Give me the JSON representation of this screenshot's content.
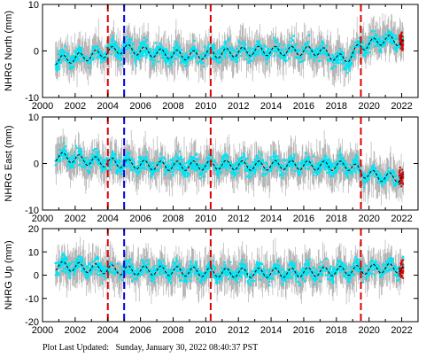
{
  "footer": {
    "label": "Plot Last Updated:",
    "timestamp": "Sunday, January 30, 2022 08:40:37 PST"
  },
  "colors": {
    "errorbar": "#a8a8a8",
    "points": "#00e5f5",
    "recent_points": "#dd0000",
    "model": "#000000",
    "red_event": "#e00000",
    "blue_event": "#0000dd"
  },
  "chart_data": [
    {
      "type": "scatter",
      "ylabel": "NHRG North (mm)",
      "xlim": [
        2000,
        2023
      ],
      "ylim": [
        -10,
        10
      ],
      "xticks": [
        2000,
        2002,
        2004,
        2006,
        2008,
        2010,
        2012,
        2014,
        2016,
        2018,
        2020,
        2022
      ],
      "yticks": [
        -10,
        0,
        10
      ],
      "start": 2000.8,
      "end": 2022.1,
      "red_lines": [
        2004.0,
        2010.3,
        2019.5
      ],
      "blue_lines": [
        2005.0
      ],
      "series": [
        {
          "key": "model",
          "style": "black dashed",
          "x": [
            2001,
            2003,
            2005,
            2007,
            2009,
            2011,
            2013,
            2015,
            2017,
            2018.5,
            2019.5,
            2021,
            2022
          ],
          "y": [
            -2,
            -1,
            0.5,
            -0.5,
            -1,
            -0.5,
            0,
            0,
            0,
            -2,
            1,
            2.5,
            2
          ]
        },
        {
          "key": "observations",
          "style": "cyan points with grey error bars",
          "x": [
            2001,
            2003,
            2005,
            2007,
            2009,
            2011,
            2013,
            2015,
            2017,
            2018.5,
            2019.5,
            2021,
            2022
          ],
          "y": [
            -2,
            -1,
            0.5,
            -0.5,
            -1,
            -0.5,
            0,
            0,
            0,
            -2.5,
            1,
            2.5,
            2
          ]
        }
      ]
    },
    {
      "type": "scatter",
      "ylabel": "NHRG East (mm)",
      "xlim": [
        2000,
        2023
      ],
      "ylim": [
        -10,
        10
      ],
      "xticks": [
        2000,
        2002,
        2004,
        2006,
        2008,
        2010,
        2012,
        2014,
        2016,
        2018,
        2020,
        2022
      ],
      "yticks": [
        -10,
        0,
        10
      ],
      "start": 2000.8,
      "end": 2022.1,
      "red_lines": [
        2004.0,
        2010.3,
        2019.5
      ],
      "blue_lines": [
        2005.0
      ],
      "series": [
        {
          "key": "model",
          "style": "black dashed",
          "x": [
            2001,
            2003,
            2005,
            2007,
            2009,
            2011,
            2013,
            2015,
            2017,
            2019,
            2019.5,
            2021,
            2022
          ],
          "y": [
            1.5,
            0.5,
            0,
            -0.5,
            -0.5,
            -0.3,
            -0.5,
            -0.3,
            -0.5,
            -0.5,
            -2,
            -3,
            -3
          ]
        },
        {
          "key": "observations",
          "style": "cyan points with grey error bars",
          "x": [
            2001,
            2003,
            2005,
            2007,
            2009,
            2011,
            2013,
            2015,
            2017,
            2019,
            2019.5,
            2021,
            2022
          ],
          "y": [
            1.5,
            0.5,
            0,
            -0.5,
            -0.5,
            -0.3,
            -0.5,
            -0.3,
            -0.5,
            -0.5,
            -2,
            -3,
            -3
          ]
        }
      ]
    },
    {
      "type": "scatter",
      "ylabel": "NHRG Up (mm)",
      "xlim": [
        2000,
        2023
      ],
      "ylim": [
        -20,
        20
      ],
      "xticks": [
        2000,
        2002,
        2004,
        2006,
        2008,
        2010,
        2012,
        2014,
        2016,
        2018,
        2020,
        2022
      ],
      "yticks": [
        -20,
        -10,
        0,
        10,
        20
      ],
      "start": 2000.8,
      "end": 2022.1,
      "red_lines": [
        2004.0,
        2010.3,
        2019.5
      ],
      "blue_lines": [
        2005.0
      ],
      "series": [
        {
          "key": "model",
          "style": "black dashed",
          "x": [
            2001,
            2003,
            2005,
            2007,
            2009,
            2011,
            2013,
            2015,
            2017,
            2019,
            2021,
            2022
          ],
          "y": [
            4,
            3,
            2,
            2,
            1.5,
            1,
            1,
            1,
            1.5,
            2,
            3,
            3
          ]
        },
        {
          "key": "observations",
          "style": "cyan points with grey error bars",
          "x": [
            2001,
            2003,
            2005,
            2007,
            2009,
            2011,
            2013,
            2015,
            2017,
            2019,
            2021,
            2022
          ],
          "y": [
            4,
            3,
            2,
            2,
            1.5,
            1,
            1,
            1,
            1.5,
            2,
            3,
            3
          ]
        }
      ]
    }
  ]
}
